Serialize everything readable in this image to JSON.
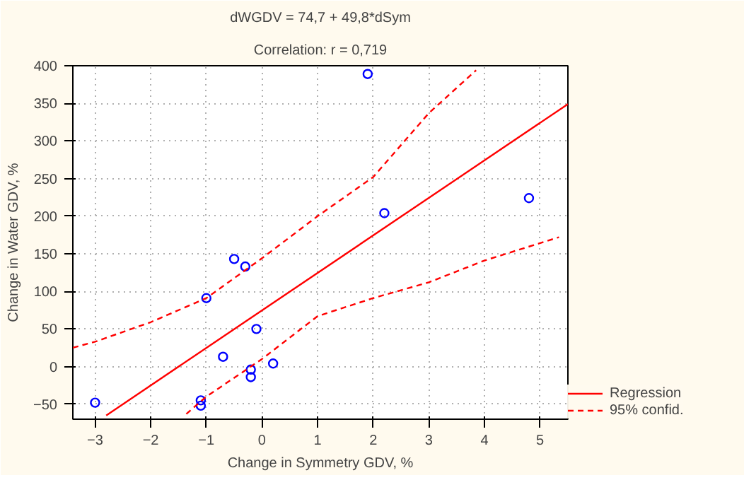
{
  "chart_data": {
    "type": "scatter",
    "title": "dWGDV = 74,7 + 49,8*dSym",
    "subtitle": "Correlation: r = 0,719",
    "xlabel": "Change in Symmetry GDV, %",
    "ylabel": "Change in Water GDV, %",
    "xlim": [
      -3.4,
      5.5
    ],
    "ylim": [
      -70,
      400
    ],
    "xticks": [
      -3,
      -2,
      -1,
      0,
      1,
      2,
      3,
      4,
      5
    ],
    "yticks": [
      -50,
      0,
      50,
      100,
      150,
      200,
      250,
      300,
      350,
      400
    ],
    "grid": true,
    "legend": "bottom right",
    "series": [
      {
        "marker": "circle",
        "color": "#0000ff",
        "x": [
          -3.0,
          -1.1,
          -1.1,
          -1.0,
          -0.5,
          -0.3,
          -0.7,
          -0.1,
          -0.2,
          -0.2,
          0.2,
          1.9,
          2.2,
          4.8
        ],
        "values": [
          -48,
          -45,
          -52,
          91,
          143,
          133,
          13,
          50,
          -4,
          -14,
          4,
          389,
          204,
          224
        ]
      },
      {
        "type": "line",
        "name": "Regression",
        "color": "#ff0000",
        "line_style": "solid",
        "x": [
          -2.8,
          5.5
        ],
        "values": [
          -65,
          349
        ]
      },
      {
        "type": "line",
        "name": "95% confid.",
        "color": "#ff0000",
        "line_style": "dashed",
        "x": [
          -3.4,
          -3,
          -2,
          -1,
          0,
          1,
          2,
          3,
          3.85
        ],
        "values": [
          25,
          33,
          59,
          91,
          144,
          200,
          252,
          337,
          394
        ]
      },
      {
        "type": "line",
        "color": "#ff0000",
        "line_style": "dashed",
        "x": [
          -1.36,
          -1,
          0,
          1,
          2,
          3,
          4,
          5.34
        ],
        "values": [
          -63,
          -40,
          10,
          67,
          91,
          112,
          141,
          172
        ]
      }
    ]
  }
}
